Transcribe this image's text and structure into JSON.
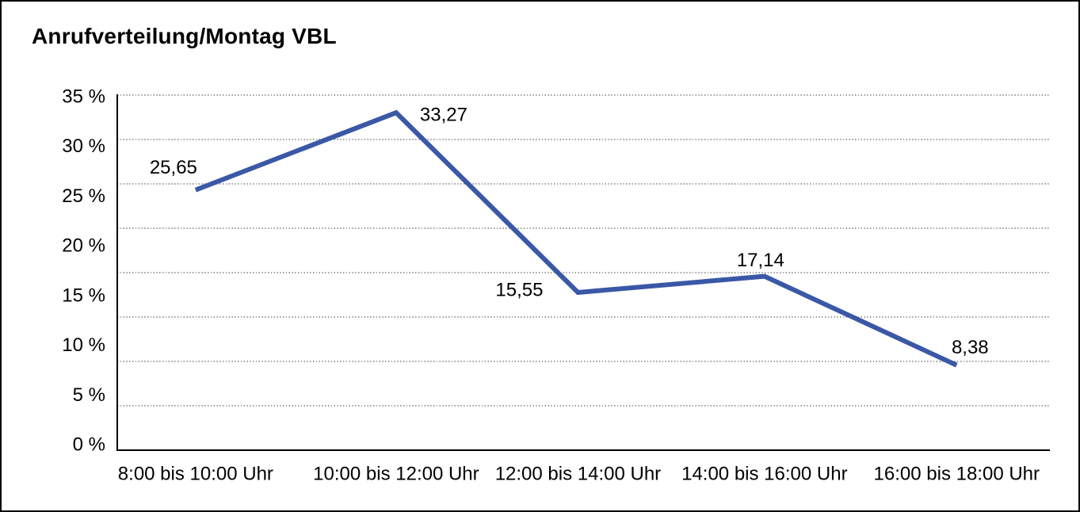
{
  "header": {
    "title": "Anrufverteilung/Montag VBL"
  },
  "chart_data": {
    "type": "line",
    "title": "Anrufverteilung/Montag VBL",
    "categories": [
      "8:00 bis 10:00 Uhr",
      "10:00 bis 12:00 Uhr",
      "12:00 bis 14:00 Uhr",
      "14:00 bis 16:00 Uhr",
      "16:00 bis 18:00 Uhr"
    ],
    "values": [
      25.65,
      33.27,
      15.55,
      17.14,
      8.38
    ],
    "data_labels": [
      "25,65",
      "33,27",
      "15,55",
      "17,14",
      "8,38"
    ],
    "y_tick_labels": [
      "35 %",
      "30 %",
      "25 %",
      "20 %",
      "15 %",
      "10 %",
      "5 %",
      "0 %"
    ],
    "ylim": [
      0,
      35
    ],
    "y_tick_step": 5,
    "xlabel": "",
    "ylabel": "",
    "legend": "none",
    "grid": "horizontal-dotted",
    "line_color": "#3B58A6",
    "text_color": "#000000"
  }
}
